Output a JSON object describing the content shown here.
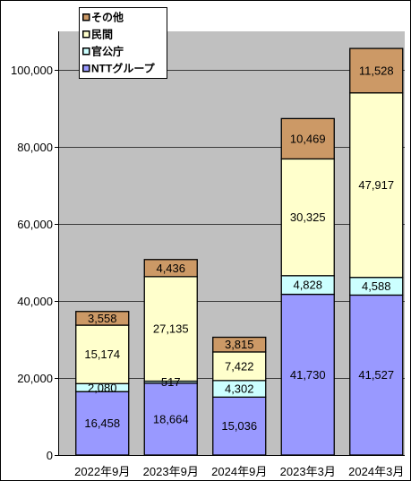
{
  "chart_data": {
    "type": "bar",
    "stacked": true,
    "categories": [
      "2022年9月",
      "2023年9月",
      "2024年9月",
      "2023年3月",
      "2024年3月"
    ],
    "series": [
      {
        "name": "NTTグループ",
        "color": "#9999FF",
        "values": [
          16458,
          18664,
          15036,
          41730,
          41527
        ]
      },
      {
        "name": "官公庁",
        "color": "#CCFFFF",
        "values": [
          2080,
          517,
          4302,
          4828,
          4588
        ]
      },
      {
        "name": "民間",
        "color": "#FFFFCC",
        "values": [
          15174,
          27135,
          7422,
          30325,
          47917
        ]
      },
      {
        "name": "その他",
        "color": "#CC9966",
        "values": [
          3558,
          4436,
          3815,
          10469,
          11528
        ]
      }
    ],
    "ylim": [
      0,
      110000
    ],
    "yticks": [
      0,
      20000,
      40000,
      60000,
      80000,
      100000
    ],
    "ytick_labels": [
      "0",
      "20,000",
      "40,000",
      "60,000",
      "80,000",
      "100,000"
    ],
    "data_labels": true,
    "grid": true,
    "legend": "top-left",
    "plot_background": "#C0C0C0"
  }
}
